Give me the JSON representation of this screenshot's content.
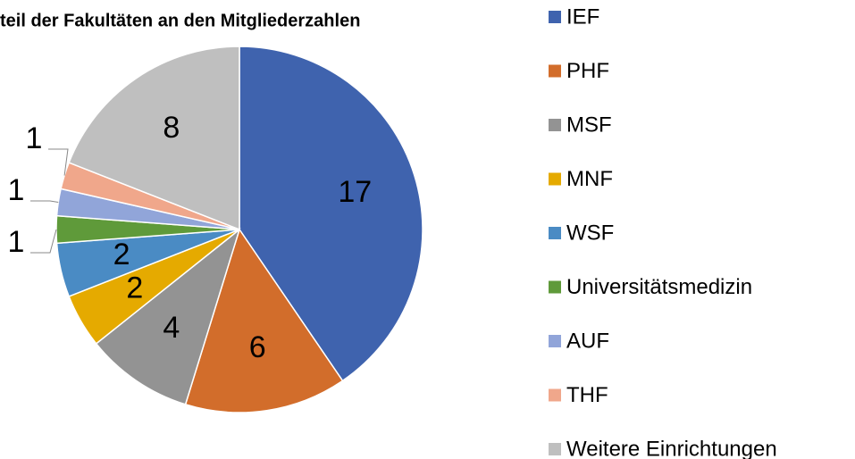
{
  "chart_data": {
    "type": "pie",
    "title": "teil der Fakultäten an den Mitgliederzahlen",
    "categories": [
      "IEF",
      "PHF",
      "MSF",
      "MNF",
      "WSF",
      "Universitätsmedizin",
      "AUF",
      "THF",
      "Weitere Einrichtungen"
    ],
    "values": [
      17,
      6,
      4,
      2,
      2,
      1,
      1,
      1,
      8
    ],
    "colors": [
      "#3f63ae",
      "#d26d2b",
      "#939393",
      "#e5aa00",
      "#4a8bc4",
      "#5f9a3a",
      "#91a5d9",
      "#f0a78b",
      "#bfbfbf"
    ],
    "legend": "right"
  }
}
